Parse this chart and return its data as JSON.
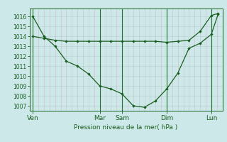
{
  "background_color": "#cce8e8",
  "line_color": "#1a5e20",
  "ylabel": "Pression niveau de la mer( hPa )",
  "ylim": [
    1006.5,
    1016.8
  ],
  "yticks": [
    1007,
    1008,
    1009,
    1010,
    1011,
    1012,
    1013,
    1014,
    1015,
    1016
  ],
  "xtick_labels": [
    "Ven",
    "",
    "Mar",
    "Sam",
    "",
    "Dim",
    "",
    "Lun"
  ],
  "x_day_positions": [
    0,
    3,
    4,
    6,
    8
  ],
  "x_day_labels": [
    "Ven",
    "Mar",
    "Sam",
    "Dim",
    "Lun"
  ],
  "line1_x": [
    0,
    0.5,
    1,
    1.5,
    2,
    2.5,
    3,
    3.5,
    4,
    4.5,
    5,
    5.5,
    6,
    6.5,
    7,
    7.5,
    8,
    8.3
  ],
  "line1_y": [
    1016.0,
    1014.0,
    1013.0,
    1011.5,
    1011.0,
    1010.2,
    1009.0,
    1008.7,
    1008.2,
    1007.0,
    1006.85,
    1007.5,
    1008.7,
    1010.3,
    1012.8,
    1013.3,
    1014.2,
    1016.2
  ],
  "line2_x": [
    0,
    0.5,
    1,
    1.5,
    2,
    2.5,
    3,
    3.5,
    4,
    4.5,
    5,
    5.5,
    6,
    6.5,
    7,
    7.5,
    8,
    8.3
  ],
  "line2_y": [
    1014.0,
    1013.8,
    1013.6,
    1013.5,
    1013.5,
    1013.5,
    1013.5,
    1013.5,
    1013.5,
    1013.5,
    1013.5,
    1013.5,
    1013.4,
    1013.5,
    1013.6,
    1014.5,
    1016.1,
    1016.3
  ],
  "vline_color": "#2a6a2a",
  "hgrid_color": "#b8d4d4",
  "vgrid_color": "#d4b8c4"
}
